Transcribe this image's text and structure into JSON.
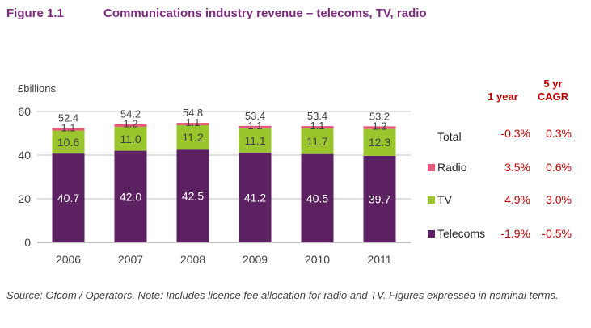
{
  "figure": {
    "number": "Figure 1.1",
    "title": "Communications industry revenue – telecoms, TV, radio",
    "source": "Source: Ofcom / Operators. Note: Includes licence fee allocation for radio and TV. Figures expressed in nominal terms."
  },
  "chart_data": {
    "type": "bar",
    "stacked": true,
    "ylabel": "£billions",
    "ylim": [
      0,
      60
    ],
    "yticks": [
      0,
      20,
      40,
      60
    ],
    "categories": [
      "2006",
      "2007",
      "2008",
      "2009",
      "2010",
      "2011"
    ],
    "series": [
      {
        "name": "Telecoms",
        "color": "#5b2161",
        "values": [
          40.7,
          42.0,
          42.5,
          41.2,
          40.5,
          39.7
        ]
      },
      {
        "name": "TV",
        "color": "#9bc52d",
        "values": [
          10.6,
          11.0,
          11.2,
          11.1,
          11.7,
          12.3
        ]
      },
      {
        "name": "Radio",
        "color": "#e8577b",
        "values": [
          1.1,
          1.2,
          1.1,
          1.1,
          1.1,
          1.2
        ]
      }
    ],
    "totals": [
      52.4,
      54.2,
      54.8,
      53.4,
      53.4,
      53.2
    ],
    "grid": true,
    "legend": "right",
    "growth_table": {
      "header_1yr": "1 year",
      "header_5yr_line1": "5 yr",
      "header_5yr_line2": "CAGR",
      "rows": [
        {
          "label": "Total",
          "one_year": "-0.3%",
          "cagr": "0.3%"
        },
        {
          "label": "Radio",
          "one_year": "3.5%",
          "cagr": "0.6%",
          "color": "#e8577b"
        },
        {
          "label": "TV",
          "one_year": "4.9%",
          "cagr": "3.0%",
          "color": "#9bc52d"
        },
        {
          "label": "Telecoms",
          "one_year": "-1.9%",
          "cagr": "-0.5%",
          "color": "#5b2161"
        }
      ]
    }
  }
}
